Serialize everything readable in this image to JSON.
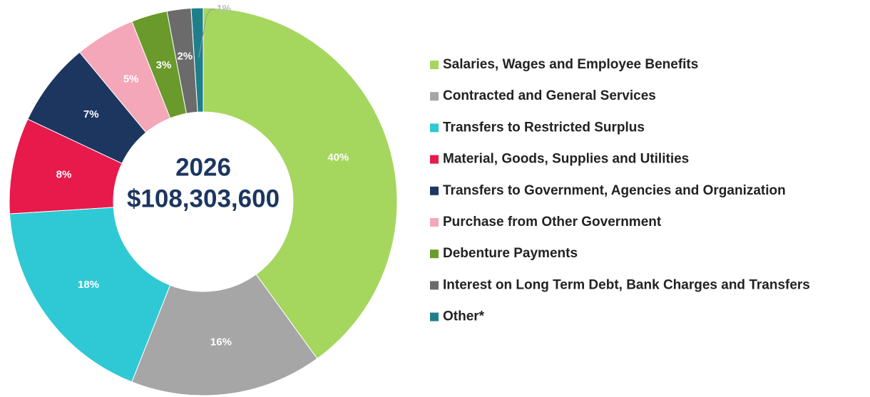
{
  "chart_data": {
    "type": "donut",
    "center_text": [
      "2026",
      "$108,303,600"
    ],
    "categories": [
      "Salaries, Wages and Employee Benefits",
      "Contracted and General Services",
      "Transfers to Restricted Surplus",
      "Material, Goods, Supplies and Utilities",
      "Transfers to Government, Agencies and Organization",
      "Purchase from Other Government",
      "Debenture Payments",
      "Interest on Long Term Debt, Bank Charges and Transfers",
      "Other*"
    ],
    "values": [
      40,
      16,
      18,
      8,
      7,
      5,
      3,
      2,
      1
    ],
    "value_labels": [
      "40%",
      "16%",
      "18%",
      "8%",
      "7%",
      "5%",
      "3%",
      "2%",
      "1%"
    ],
    "colors": [
      "#a5d65e",
      "#a6a6a6",
      "#2ec9d4",
      "#e8194b",
      "#1c3660",
      "#f4a7b9",
      "#6a9a2b",
      "#6b6b6b",
      "#1e7f8a"
    ],
    "legend": "right"
  }
}
